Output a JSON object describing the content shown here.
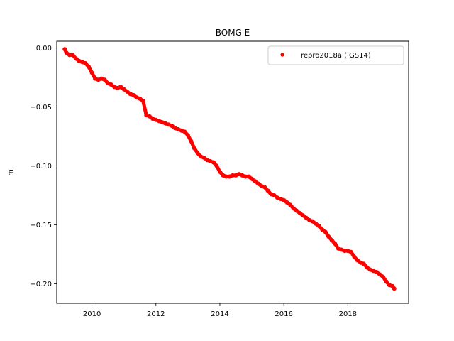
{
  "chart_data": {
    "type": "scatter",
    "title": "BOMG E",
    "xlabel": "",
    "ylabel": "m",
    "xlim": [
      2008.9,
      2019.9
    ],
    "ylim": [
      -0.2165,
      0.0057
    ],
    "xticks": [
      2010,
      2012,
      2014,
      2016,
      2018
    ],
    "xtick_labels": [
      "2010",
      "2012",
      "2014",
      "2016",
      "2018"
    ],
    "yticks": [
      0.0,
      -0.05,
      -0.1,
      -0.15,
      -0.2
    ],
    "ytick_labels": [
      "0.00",
      "−0.05",
      "−0.10",
      "−0.15",
      "−0.20"
    ],
    "grid": false,
    "legend_position": "top-right",
    "series": [
      {
        "name": "repro2018a (IGS14)",
        "color": "#ff0000",
        "marker": "circle",
        "x": [
          2009.15,
          2009.2,
          2009.3,
          2009.4,
          2009.5,
          2009.6,
          2009.7,
          2009.8,
          2009.9,
          2010.0,
          2010.1,
          2010.2,
          2010.3,
          2010.4,
          2010.5,
          2010.6,
          2010.7,
          2010.8,
          2010.9,
          2011.0,
          2011.1,
          2011.2,
          2011.3,
          2011.4,
          2011.5,
          2011.6,
          2011.7,
          2011.8,
          2011.9,
          2012.0,
          2012.1,
          2012.2,
          2012.3,
          2012.4,
          2012.5,
          2012.6,
          2012.7,
          2012.8,
          2012.9,
          2013.0,
          2013.1,
          2013.2,
          2013.3,
          2013.4,
          2013.5,
          2013.6,
          2013.7,
          2013.8,
          2013.9,
          2014.0,
          2014.1,
          2014.2,
          2014.3,
          2014.4,
          2014.5,
          2014.6,
          2014.7,
          2014.8,
          2014.9,
          2015.0,
          2015.1,
          2015.2,
          2015.3,
          2015.4,
          2015.5,
          2015.6,
          2015.7,
          2015.8,
          2015.9,
          2016.0,
          2016.1,
          2016.2,
          2016.3,
          2016.4,
          2016.5,
          2016.6,
          2016.7,
          2016.8,
          2016.9,
          2017.0,
          2017.1,
          2017.2,
          2017.3,
          2017.4,
          2017.5,
          2017.6,
          2017.7,
          2017.8,
          2017.9,
          2018.0,
          2018.1,
          2018.2,
          2018.3,
          2018.4,
          2018.5,
          2018.6,
          2018.7,
          2018.8,
          2018.9,
          2019.0,
          2019.1,
          2019.2,
          2019.3,
          2019.4,
          2019.45
        ],
        "y": [
          -0.001,
          -0.004,
          -0.006,
          -0.006,
          -0.009,
          -0.011,
          -0.012,
          -0.013,
          -0.016,
          -0.021,
          -0.026,
          -0.027,
          -0.026,
          -0.027,
          -0.03,
          -0.031,
          -0.033,
          -0.034,
          -0.033,
          -0.035,
          -0.037,
          -0.039,
          -0.04,
          -0.042,
          -0.043,
          -0.045,
          -0.057,
          -0.058,
          -0.06,
          -0.061,
          -0.062,
          -0.063,
          -0.064,
          -0.065,
          -0.066,
          -0.068,
          -0.069,
          -0.07,
          -0.071,
          -0.074,
          -0.079,
          -0.085,
          -0.089,
          -0.092,
          -0.093,
          -0.095,
          -0.096,
          -0.097,
          -0.1,
          -0.105,
          -0.108,
          -0.109,
          -0.109,
          -0.108,
          -0.108,
          -0.107,
          -0.108,
          -0.109,
          -0.109,
          -0.111,
          -0.113,
          -0.115,
          -0.117,
          -0.118,
          -0.121,
          -0.124,
          -0.125,
          -0.127,
          -0.128,
          -0.129,
          -0.131,
          -0.133,
          -0.136,
          -0.138,
          -0.14,
          -0.142,
          -0.144,
          -0.146,
          -0.147,
          -0.149,
          -0.151,
          -0.154,
          -0.156,
          -0.16,
          -0.163,
          -0.166,
          -0.17,
          -0.171,
          -0.172,
          -0.172,
          -0.173,
          -0.177,
          -0.18,
          -0.182,
          -0.183,
          -0.186,
          -0.188,
          -0.189,
          -0.19,
          -0.192,
          -0.194,
          -0.198,
          -0.201,
          -0.202,
          -0.204
        ]
      }
    ]
  }
}
